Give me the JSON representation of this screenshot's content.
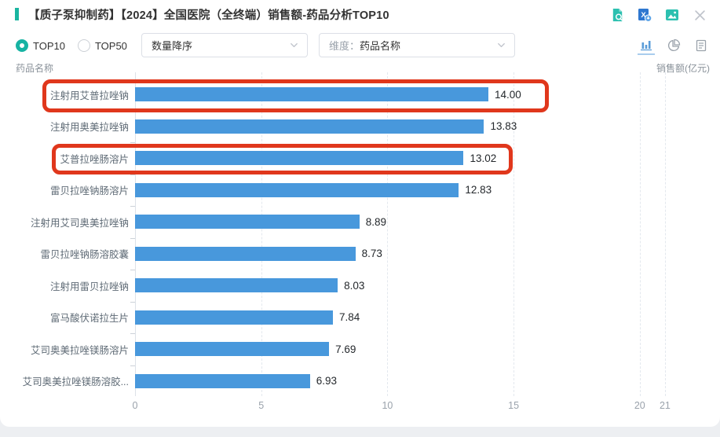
{
  "header": {
    "title": "【质子泵抑制药】【2024】全国医院（全终端）销售额-药品分析TOP10",
    "icons": [
      {
        "name": "doc-search-icon",
        "color": "#2cc0b0"
      },
      {
        "name": "excel-export-icon",
        "color": "#2e77d0"
      },
      {
        "name": "image-export-icon",
        "color": "#2cc0b0"
      },
      {
        "name": "close-icon",
        "color": "#c0c4cc"
      }
    ]
  },
  "controls": {
    "radio_options": [
      {
        "label": "TOP10",
        "selected": true
      },
      {
        "label": "TOP50",
        "selected": false
      }
    ],
    "sort_select": {
      "value": "数量降序"
    },
    "dimension_select": {
      "prefix": "维度：",
      "value": "药品名称"
    },
    "view_icons": [
      {
        "name": "bar-chart-icon",
        "active": true
      },
      {
        "name": "pie-chart-icon",
        "active": false
      },
      {
        "name": "report-icon",
        "active": false
      }
    ],
    "accent_color": "#17b3a3"
  },
  "chart_header": {
    "left": "药品名称",
    "right": "销售额(亿元)"
  },
  "chart_data": {
    "type": "bar",
    "orientation": "horizontal",
    "title": "",
    "xlabel": "销售额(亿元)",
    "ylabel": "药品名称",
    "categories": [
      "注射用艾普拉唑钠",
      "注射用奥美拉唑钠",
      "艾普拉唑肠溶片",
      "雷贝拉唑钠肠溶片",
      "注射用艾司奥美拉唑钠",
      "雷贝拉唑钠肠溶胶囊",
      "注射用雷贝拉唑钠",
      "富马酸伏诺拉生片",
      "艾司奥美拉唑镁肠溶片",
      "艾司奥美拉唑镁肠溶胶..."
    ],
    "values": [
      14.0,
      13.83,
      13.02,
      12.83,
      8.89,
      8.73,
      8.03,
      7.84,
      7.69,
      6.93
    ],
    "value_labels": [
      "14.00",
      "13.83",
      "13.02",
      "12.83",
      "8.89",
      "8.73",
      "8.03",
      "7.84",
      "7.69",
      "6.93"
    ],
    "xlim": [
      0,
      21
    ],
    "x_ticks": [
      0,
      5,
      10,
      15,
      20,
      21
    ],
    "grid": "vertical-dashed",
    "bar_color": "#4898dc",
    "annotation_color": "#e0371c",
    "annotations": [
      {
        "type": "highlight-box",
        "row_index": 0,
        "target": "注射用艾普拉唑钠"
      },
      {
        "type": "highlight-box",
        "row_index": 2,
        "target": "艾普拉唑肠溶片"
      }
    ]
  }
}
